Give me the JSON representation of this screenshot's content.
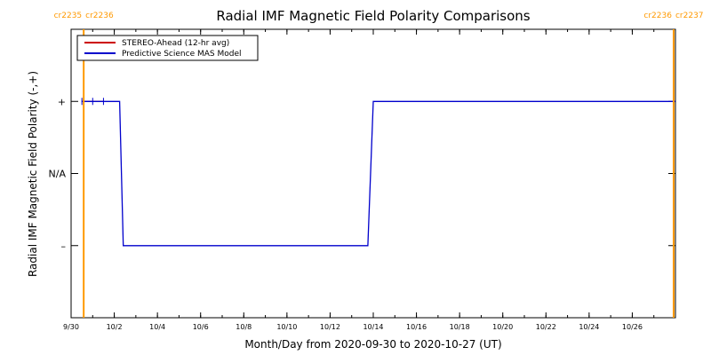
{
  "colors": {
    "stereo": "#cc0000",
    "model": "#0000cc",
    "cr_line": "#ff9900",
    "cr_text": "#ff9900"
  },
  "chart_data": {
    "type": "line",
    "title": "Radial IMF Magnetic Field Polarity Comparisons",
    "xlabel": "Month/Day from 2020-09-30 to 2020-10-27 (UT)",
    "ylabel": "Radial IMF Magnetic Field Polarity (-,+)",
    "xlim": [
      "2020-09-30",
      "2020-10-28"
    ],
    "ylim": [
      -2,
      2
    ],
    "x_ticks": [
      {
        "date": "2020-09-30",
        "label": "9/30"
      },
      {
        "date": "2020-10-02",
        "label": "10/2"
      },
      {
        "date": "2020-10-04",
        "label": "10/4"
      },
      {
        "date": "2020-10-06",
        "label": "10/6"
      },
      {
        "date": "2020-10-08",
        "label": "10/8"
      },
      {
        "date": "2020-10-10",
        "label": "10/10"
      },
      {
        "date": "2020-10-12",
        "label": "10/12"
      },
      {
        "date": "2020-10-14",
        "label": "10/14"
      },
      {
        "date": "2020-10-16",
        "label": "10/16"
      },
      {
        "date": "2020-10-18",
        "label": "10/18"
      },
      {
        "date": "2020-10-20",
        "label": "10/20"
      },
      {
        "date": "2020-10-22",
        "label": "10/22"
      },
      {
        "date": "2020-10-24",
        "label": "10/24"
      },
      {
        "date": "2020-10-26",
        "label": "10/26"
      }
    ],
    "y_ticks": [
      {
        "value": 1,
        "label": "+"
      },
      {
        "value": 0,
        "label": "N/A"
      },
      {
        "value": -1,
        "label": "–"
      }
    ],
    "legend": {
      "placement": "top-left",
      "entries": [
        "STEREO-Ahead (12-hr avg)",
        "Predictive Science MAS Model"
      ]
    },
    "series": [
      {
        "name": "STEREO-Ahead (12-hr avg)",
        "color": "#cc0000",
        "x": [
          "2020-09-30T12:00",
          "2020-10-01T00:00",
          "2020-10-01T12:00"
        ],
        "y": [
          1,
          1,
          1
        ]
      },
      {
        "name": "Predictive Science MAS Model",
        "color": "#0000cc",
        "x": [
          "2020-09-30T12:00",
          "2020-10-02T06:00",
          "2020-10-02T10:00",
          "2020-10-13T18:00",
          "2020-10-14T00:00",
          "2020-10-28T00:00"
        ],
        "y": [
          1,
          1,
          -1,
          -1,
          1,
          1
        ]
      }
    ],
    "carrington_markers": [
      {
        "date": "2020-09-30T14:00",
        "left_label": "cr2235",
        "right_label": "cr2236"
      },
      {
        "date": "2020-10-27T22:00",
        "left_label": "cr2236",
        "right_label": "cr2237"
      }
    ]
  }
}
